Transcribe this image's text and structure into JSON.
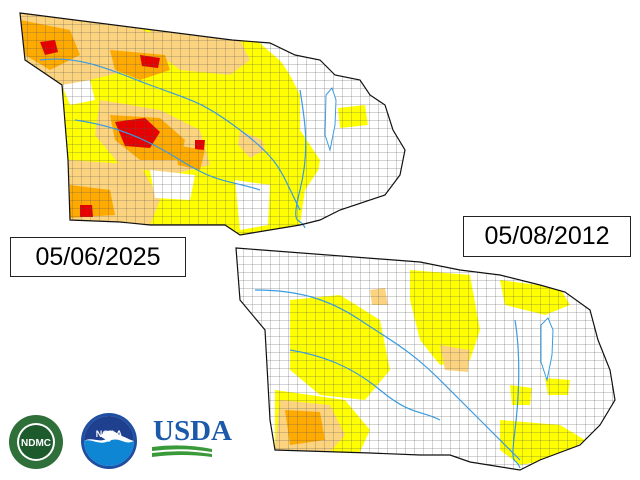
{
  "maps": {
    "current": {
      "date": "05/06/2025"
    },
    "comparison": {
      "date": "05/08/2012"
    }
  },
  "logos": {
    "ndmc": {
      "abbrev": "NDMC",
      "ring_text": "NATIONAL DROUGHT MITIGATION CENTER",
      "bottom_text": "UNIVERSITY OF NEBRASKA"
    },
    "noaa": {
      "abbrev": "NOAA"
    },
    "usda": {
      "abbrev": "USDA"
    }
  },
  "colors": {
    "none": "#ffffff",
    "d0_abnormally_dry": "#ffff00",
    "d1_moderate": "#fcd37f",
    "d2_severe": "#ffaa00",
    "d3_extreme": "#e60000",
    "county_lines": "#444444",
    "rivers": "#3a9be0",
    "usda_blue": "#1a5aa8",
    "usda_green": "#3a9a3a"
  }
}
